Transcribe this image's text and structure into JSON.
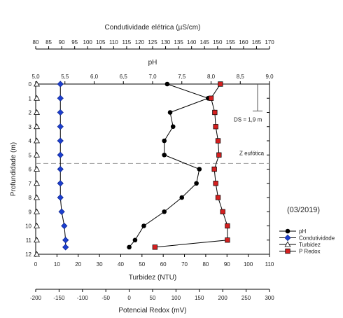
{
  "chart_data": {
    "type": "line",
    "period_label": "(03/2019)",
    "y_axis": {
      "label": "Profundidade (m)",
      "lim": [
        0,
        12
      ],
      "ticks": [
        0,
        1,
        2,
        3,
        4,
        5,
        6,
        7,
        8,
        9,
        10,
        11,
        12
      ]
    },
    "axes": {
      "conductivity": {
        "label": "Condutividade elétrica (µS/cm)",
        "lim": [
          80,
          170
        ],
        "ticks": [
          "80",
          "85",
          "90",
          "95",
          "100",
          "105",
          "110",
          "115",
          "120",
          "125",
          "130",
          "135",
          "140",
          "145",
          "150",
          "155",
          "160",
          "165",
          "170"
        ]
      },
      "ph": {
        "label": "pH",
        "lim": [
          5.0,
          9.0
        ],
        "ticks": [
          "5,0",
          "5,5",
          "6,0",
          "6,5",
          "7,0",
          "7,5",
          "8,0",
          "8,5",
          "9,0"
        ]
      },
      "turbidity": {
        "label": "Turbidez (NTU)",
        "lim": [
          0,
          110
        ],
        "ticks": [
          "0",
          "10",
          "20",
          "30",
          "40",
          "50",
          "60",
          "70",
          "80",
          "90",
          "100",
          "110"
        ]
      },
      "redox": {
        "label": "Potencial Redox (mV)",
        "lim": [
          -200,
          300
        ],
        "ticks": [
          "-200",
          "-150",
          "-100",
          "-50",
          "0",
          "50",
          "100",
          "150",
          "200",
          "250",
          "300"
        ]
      }
    },
    "series": [
      {
        "name": "pH",
        "axis": "ph",
        "color": "#000000",
        "marker": "circle",
        "depth": [
          0,
          1,
          2,
          3,
          4,
          5,
          6,
          7,
          8,
          9,
          10,
          11,
          11.5
        ],
        "values": [
          7.25,
          7.95,
          7.3,
          7.35,
          7.2,
          7.2,
          7.8,
          7.75,
          7.5,
          7.2,
          6.85,
          6.7,
          6.6
        ]
      },
      {
        "name": "Condutividade",
        "axis": "conductivity",
        "color": "#1c3fcf",
        "marker": "diamond",
        "depth": [
          0,
          1,
          2,
          3,
          4,
          5,
          6,
          7,
          8,
          9,
          10,
          11,
          11.5
        ],
        "values": [
          89.5,
          89.5,
          89.5,
          89.5,
          89.5,
          89.5,
          89.5,
          89.5,
          89.5,
          90,
          91,
          91.5,
          91.5
        ]
      },
      {
        "name": "Turbidez",
        "axis": "turbidity",
        "color": "#000000",
        "marker": "triangle",
        "depth": [
          0,
          1,
          2,
          3,
          4,
          5,
          6,
          7,
          8,
          9,
          10,
          11,
          12
        ],
        "values": [
          0.5,
          0.5,
          0.5,
          0.5,
          0.5,
          0.5,
          0.5,
          0.5,
          0.5,
          0.5,
          0.5,
          0.5,
          0.5
        ]
      },
      {
        "name": "P Redox",
        "axis": "redox",
        "color": "#d42020",
        "marker": "square",
        "depth": [
          0,
          1,
          2,
          3,
          4,
          5,
          6,
          7,
          8,
          9,
          10,
          11,
          11.5
        ],
        "values": [
          195,
          175,
          183,
          185,
          190,
          192,
          182,
          185,
          190,
          200,
          210,
          210,
          55
        ]
      }
    ],
    "annotations": {
      "ds_label": "DS = 1,9 m",
      "ds_depth": 1.9,
      "zeuf_label": "Z eufótica",
      "zeuf_depth": 5.6
    }
  }
}
